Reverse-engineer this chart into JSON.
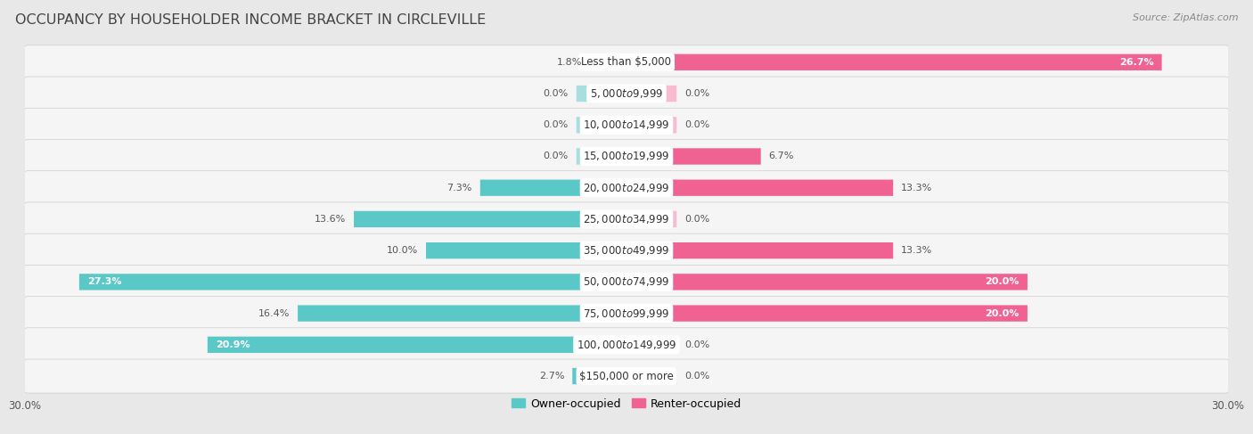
{
  "title": "OCCUPANCY BY HOUSEHOLDER INCOME BRACKET IN CIRCLEVILLE",
  "source": "Source: ZipAtlas.com",
  "categories": [
    "Less than $5,000",
    "$5,000 to $9,999",
    "$10,000 to $14,999",
    "$15,000 to $19,999",
    "$20,000 to $24,999",
    "$25,000 to $34,999",
    "$35,000 to $49,999",
    "$50,000 to $74,999",
    "$75,000 to $99,999",
    "$100,000 to $149,999",
    "$150,000 or more"
  ],
  "owner_values": [
    1.8,
    0.0,
    0.0,
    0.0,
    7.3,
    13.6,
    10.0,
    27.3,
    16.4,
    20.9,
    2.7
  ],
  "renter_values": [
    26.7,
    0.0,
    0.0,
    6.7,
    13.3,
    0.0,
    13.3,
    20.0,
    20.0,
    0.0,
    0.0
  ],
  "owner_color": "#5bc8c8",
  "owner_color_light": "#a8dede",
  "renter_color": "#f06292",
  "renter_color_light": "#f8bbd0",
  "axis_max": 30.0,
  "bg_color": "#e8e8e8",
  "row_bg_color": "#f5f5f5",
  "title_fontsize": 11.5,
  "label_fontsize": 8.0,
  "category_fontsize": 8.5,
  "legend_fontsize": 9,
  "source_fontsize": 8,
  "min_bar_val": 2.5
}
